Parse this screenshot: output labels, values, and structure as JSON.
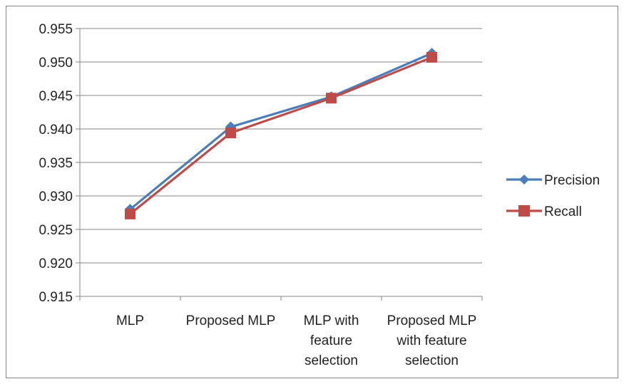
{
  "chart_data": {
    "type": "line",
    "categories": [
      [
        "MLP"
      ],
      [
        "Proposed MLP"
      ],
      [
        "MLP  with",
        "feature",
        "selection"
      ],
      [
        "Proposed MLP",
        "with feature",
        "selection"
      ]
    ],
    "series": [
      {
        "name": "Precision",
        "values": [
          0.928,
          0.9403,
          0.9448,
          0.9513
        ],
        "color": "#4A7EBB",
        "marker": "diamond"
      },
      {
        "name": "Recall",
        "values": [
          0.9273,
          0.9394,
          0.9446,
          0.9507
        ],
        "color": "#BE4B48",
        "marker": "square"
      }
    ],
    "y_ticks": [
      "0.915",
      "0.920",
      "0.925",
      "0.930",
      "0.935",
      "0.940",
      "0.945",
      "0.950",
      "0.955"
    ],
    "ylim": [
      0.915,
      0.955
    ],
    "grid": true,
    "legend_position": "right"
  }
}
